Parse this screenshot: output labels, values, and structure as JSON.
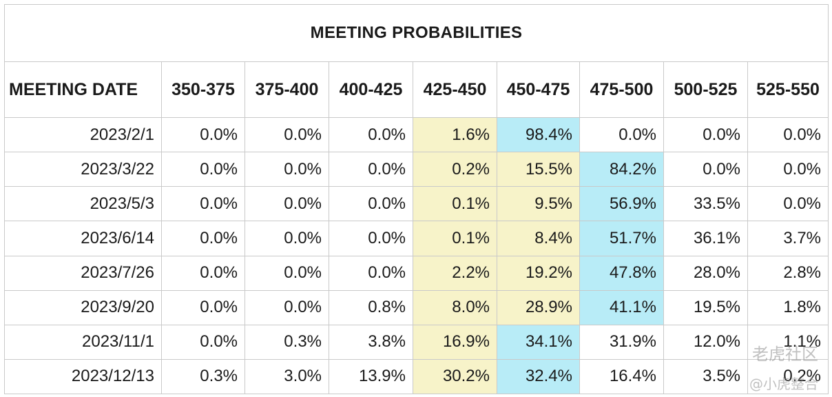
{
  "title": "MEETING PROBABILITIES",
  "columns": [
    "MEETING DATE",
    "350-375",
    "375-400",
    "400-425",
    "425-450",
    "450-475",
    "475-500",
    "500-525",
    "525-550"
  ],
  "rows": [
    {
      "date": "2023/2/1",
      "values": [
        "0.0%",
        "0.0%",
        "0.0%",
        "1.6%",
        "98.4%",
        "0.0%",
        "0.0%",
        "0.0%"
      ],
      "highlights": [
        "",
        "",
        "",
        "yellow",
        "cyan",
        "",
        "",
        ""
      ]
    },
    {
      "date": "2023/3/22",
      "values": [
        "0.0%",
        "0.0%",
        "0.0%",
        "0.2%",
        "15.5%",
        "84.2%",
        "0.0%",
        "0.0%"
      ],
      "highlights": [
        "",
        "",
        "",
        "yellow",
        "yellow",
        "cyan",
        "",
        ""
      ]
    },
    {
      "date": "2023/5/3",
      "values": [
        "0.0%",
        "0.0%",
        "0.0%",
        "0.1%",
        "9.5%",
        "56.9%",
        "33.5%",
        "0.0%"
      ],
      "highlights": [
        "",
        "",
        "",
        "yellow",
        "yellow",
        "cyan",
        "",
        ""
      ]
    },
    {
      "date": "2023/6/14",
      "values": [
        "0.0%",
        "0.0%",
        "0.0%",
        "0.1%",
        "8.4%",
        "51.7%",
        "36.1%",
        "3.7%"
      ],
      "highlights": [
        "",
        "",
        "",
        "yellow",
        "yellow",
        "cyan",
        "",
        ""
      ]
    },
    {
      "date": "2023/7/26",
      "values": [
        "0.0%",
        "0.0%",
        "0.0%",
        "2.2%",
        "19.2%",
        "47.8%",
        "28.0%",
        "2.8%"
      ],
      "highlights": [
        "",
        "",
        "",
        "yellow",
        "yellow",
        "cyan",
        "",
        ""
      ]
    },
    {
      "date": "2023/9/20",
      "values": [
        "0.0%",
        "0.0%",
        "0.8%",
        "8.0%",
        "28.9%",
        "41.1%",
        "19.5%",
        "1.8%"
      ],
      "highlights": [
        "",
        "",
        "",
        "yellow",
        "yellow",
        "cyan",
        "",
        ""
      ]
    },
    {
      "date": "2023/11/1",
      "values": [
        "0.0%",
        "0.3%",
        "3.8%",
        "16.9%",
        "34.1%",
        "31.9%",
        "12.0%",
        "1.1%"
      ],
      "highlights": [
        "",
        "",
        "",
        "yellow",
        "cyan",
        "",
        "",
        ""
      ]
    },
    {
      "date": "2023/12/13",
      "values": [
        "0.3%",
        "3.0%",
        "13.9%",
        "30.2%",
        "32.4%",
        "16.4%",
        "3.5%",
        "0.2%"
      ],
      "highlights": [
        "",
        "",
        "",
        "yellow",
        "cyan",
        "",
        "",
        ""
      ]
    }
  ],
  "colors": {
    "yellow": "#f7f3c9",
    "cyan": "#b8ecf7",
    "border": "#c9c9c9"
  },
  "watermark": {
    "line1": "老虎社区",
    "line2": "@小虎整合"
  }
}
